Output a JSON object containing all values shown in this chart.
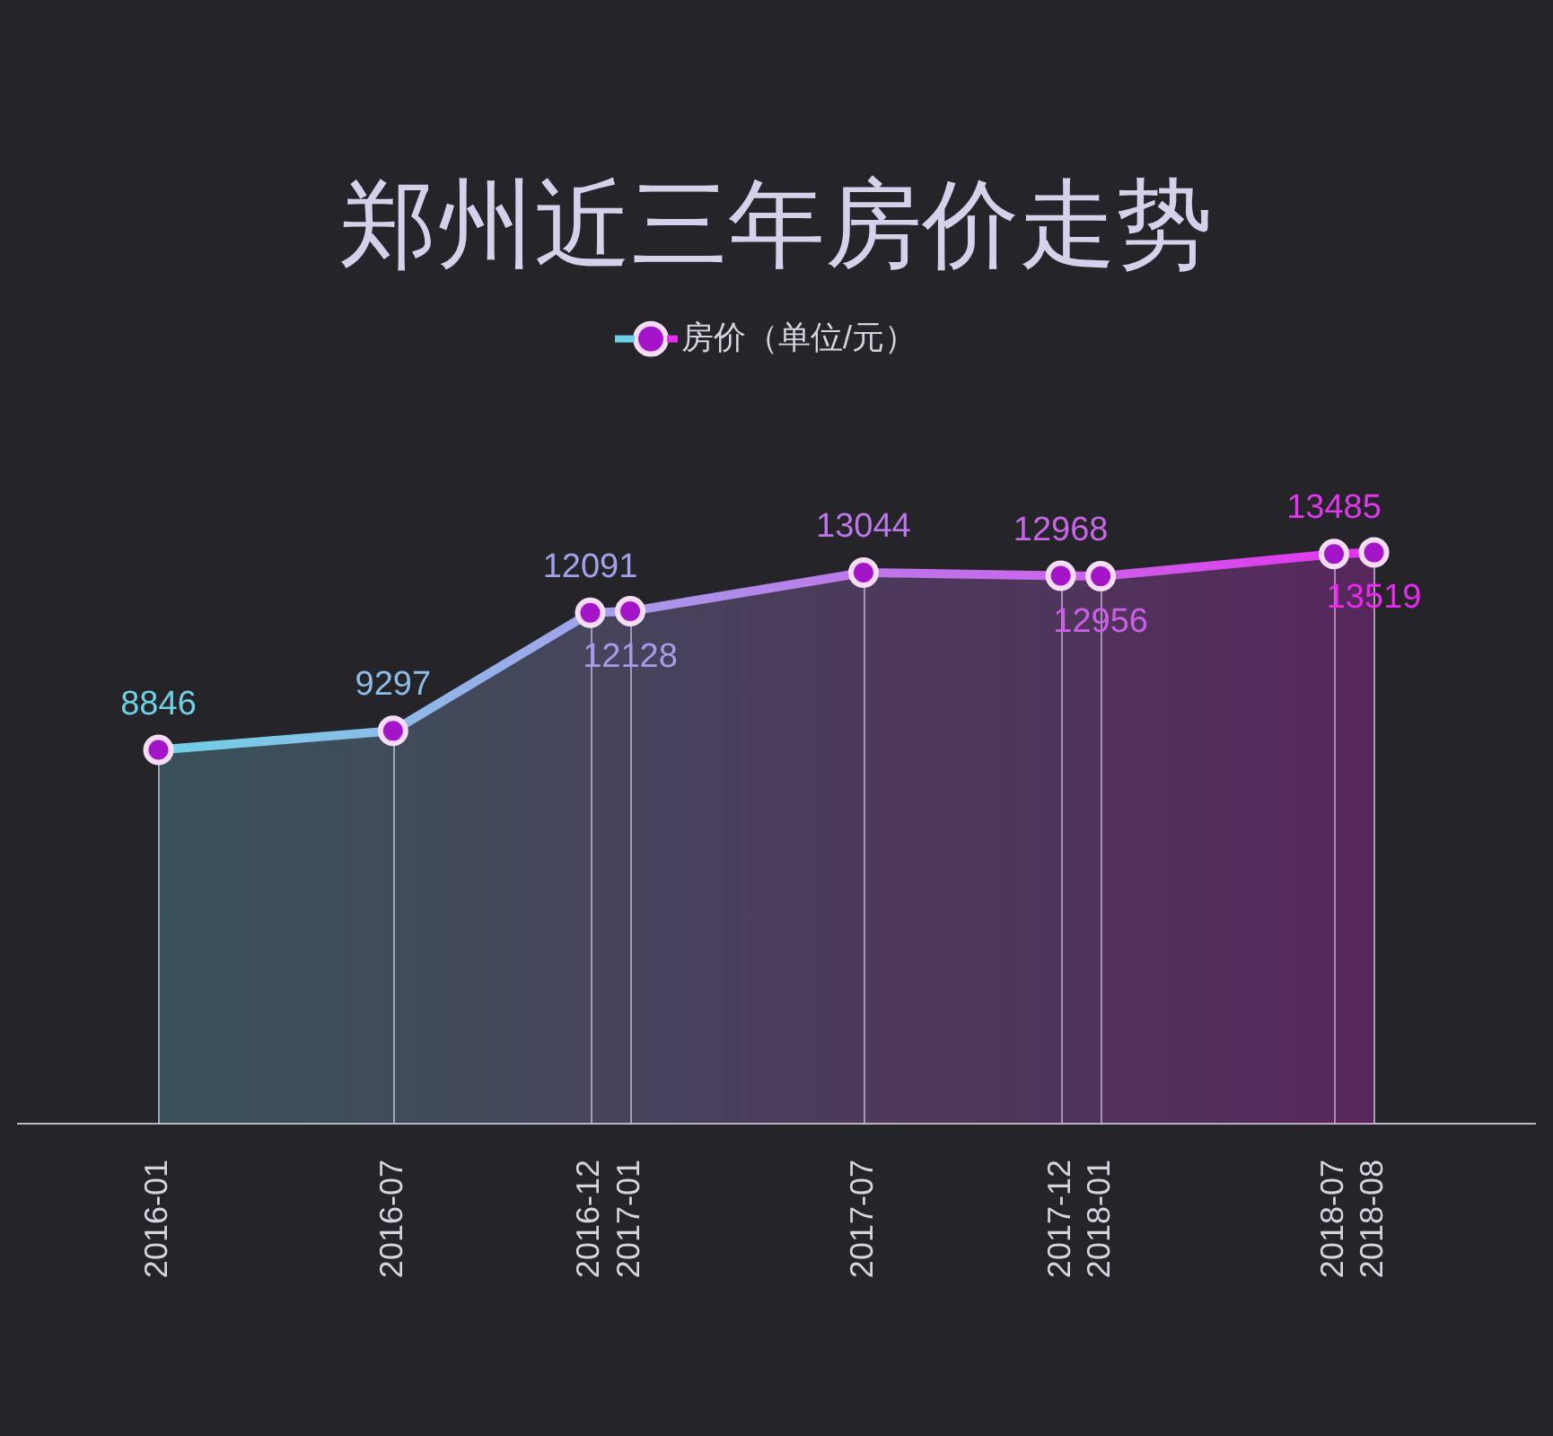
{
  "chart_data": {
    "type": "area",
    "title": "郑州近三年房价走势",
    "x": [
      "2016-01",
      "2016-07",
      "2016-12",
      "2017-01",
      "2017-07",
      "2017-12",
      "2018-01",
      "2018-07",
      "2018-08"
    ],
    "series": [
      {
        "name": "房价（单位/元）",
        "color": "#a414c8",
        "colors": [
          "#70d0e6",
          "#8cbce8",
          "#a2a2ea",
          "#a69aea",
          "#bc78ea",
          "#c866ea",
          "#cc5eea",
          "#e038ec",
          "#e82cec"
        ],
        "values": [
          8846,
          9297,
          12091,
          12128,
          13044,
          12968,
          12956,
          13485,
          13519
        ]
      }
    ],
    "xlim": [
      "2015-09-14",
      "2018-12-04"
    ],
    "xticks": [
      "2016-01",
      "2016-07",
      "2016-12",
      "2017-01",
      "2017-07",
      "2017-12",
      "2018-01",
      "2018-07",
      "2018-08"
    ],
    "tick_labels": "x",
    "grid": "x",
    "legend": "top",
    "marker": "circle",
    "line_style": "solid",
    "data_labels": true
  }
}
